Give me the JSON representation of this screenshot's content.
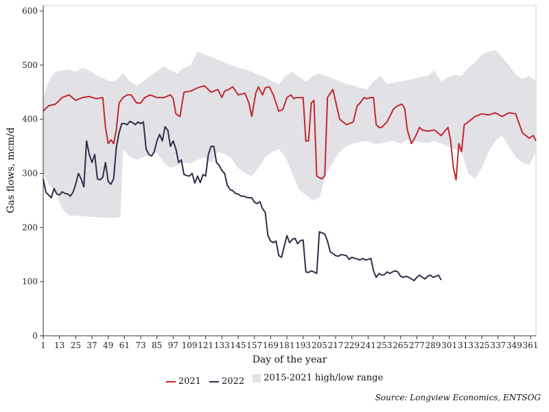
{
  "chart_data": {
    "type": "line",
    "xlabel": "Day of the year",
    "ylabel": "Gas flows, mcm/d",
    "xlim": [
      1,
      365
    ],
    "ylim": [
      0,
      600
    ],
    "x_ticks": [
      1,
      13,
      25,
      37,
      49,
      61,
      73,
      85,
      97,
      109,
      121,
      133,
      145,
      157,
      169,
      181,
      193,
      205,
      217,
      229,
      241,
      253,
      265,
      277,
      289,
      301,
      313,
      325,
      337,
      349,
      361
    ],
    "y_ticks": [
      0,
      100,
      200,
      300,
      400,
      500,
      600
    ],
    "grid": false,
    "legend_position": "bottom",
    "source": "Source: Longview Economics, ENTSOG",
    "range": {
      "name": "2015-2021 high/low range",
      "color": "#e2e1e6",
      "x": [
        1,
        5,
        10,
        15,
        20,
        25,
        30,
        35,
        40,
        45,
        50,
        55,
        58,
        60,
        65,
        70,
        75,
        80,
        85,
        90,
        95,
        100,
        105,
        110,
        115,
        120,
        125,
        130,
        135,
        140,
        145,
        150,
        155,
        160,
        165,
        170,
        175,
        180,
        185,
        190,
        195,
        200,
        205,
        210,
        215,
        220,
        225,
        230,
        235,
        240,
        245,
        250,
        255,
        260,
        265,
        270,
        275,
        280,
        285,
        290,
        295,
        300,
        305,
        310,
        315,
        320,
        325,
        330,
        335,
        340,
        345,
        350,
        355,
        360,
        365
      ],
      "high": [
        440,
        470,
        488,
        490,
        492,
        488,
        495,
        490,
        482,
        476,
        470,
        472,
        480,
        485,
        470,
        462,
        470,
        480,
        488,
        498,
        490,
        485,
        495,
        500,
        525,
        520,
        515,
        510,
        505,
        500,
        495,
        492,
        488,
        482,
        478,
        470,
        465,
        480,
        488,
        478,
        470,
        480,
        485,
        480,
        475,
        470,
        465,
        462,
        458,
        455,
        470,
        480,
        465,
        468,
        470,
        472,
        475,
        478,
        480,
        490,
        470,
        478,
        482,
        480,
        495,
        505,
        520,
        525,
        528,
        515,
        500,
        482,
        475,
        480,
        470
      ],
      "low": [
        300,
        280,
        265,
        235,
        222,
        222,
        221,
        220,
        219,
        218,
        218,
        218,
        220,
        345,
        330,
        325,
        330,
        335,
        338,
        320,
        310,
        315,
        320,
        318,
        325,
        330,
        320,
        340,
        335,
        328,
        310,
        300,
        295,
        310,
        330,
        340,
        345,
        330,
        300,
        270,
        260,
        250,
        255,
        300,
        320,
        340,
        350,
        355,
        358,
        360,
        355,
        355,
        358,
        360,
        355,
        362,
        360,
        358,
        356,
        360,
        355,
        350,
        345,
        340,
        300,
        290,
        310,
        340,
        360,
        370,
        350,
        330,
        320,
        315,
        340
      ]
    },
    "series": [
      {
        "name": "2021",
        "color": "#c0272d",
        "x": [
          1,
          5,
          10,
          15,
          20,
          25,
          30,
          35,
          40,
          45,
          47,
          49,
          51,
          53,
          55,
          57,
          60,
          63,
          66,
          70,
          73,
          76,
          80,
          85,
          90,
          95,
          97,
          99,
          102,
          105,
          110,
          115,
          120,
          125,
          130,
          133,
          135,
          138,
          141,
          145,
          150,
          153,
          155,
          158,
          160,
          163,
          165,
          168,
          171,
          175,
          178,
          181,
          184,
          186,
          188,
          190,
          193,
          195,
          197,
          199,
          201,
          203,
          205,
          207,
          209,
          211,
          215,
          220,
          225,
          230,
          233,
          235,
          238,
          240,
          243,
          245,
          247,
          249,
          251,
          255,
          260,
          263,
          266,
          268,
          270,
          273,
          276,
          279,
          281,
          285,
          290,
          295,
          300,
          302,
          304,
          306,
          308,
          310,
          312,
          315,
          320,
          325,
          330,
          335,
          340,
          345,
          350,
          355,
          360,
          363,
          365
        ],
        "y": [
          415,
          425,
          428,
          440,
          445,
          435,
          440,
          442,
          438,
          440,
          385,
          355,
          362,
          355,
          380,
          430,
          440,
          445,
          445,
          430,
          430,
          440,
          445,
          440,
          440,
          445,
          438,
          410,
          405,
          450,
          452,
          458,
          462,
          450,
          455,
          440,
          452,
          455,
          460,
          445,
          448,
          430,
          405,
          448,
          460,
          445,
          458,
          460,
          445,
          415,
          418,
          440,
          445,
          438,
          440,
          440,
          440,
          360,
          360,
          430,
          435,
          295,
          292,
          290,
          296,
          440,
          455,
          400,
          390,
          395,
          425,
          430,
          440,
          438,
          440,
          440,
          390,
          385,
          385,
          395,
          420,
          425,
          428,
          420,
          380,
          355,
          368,
          385,
          380,
          378,
          380,
          370,
          385,
          360,
          310,
          288,
          355,
          340,
          390,
          395,
          405,
          410,
          408,
          412,
          405,
          412,
          410,
          375,
          365,
          370,
          360
        ]
      },
      {
        "name": "2022",
        "color": "#2b2d47",
        "x": [
          1,
          3,
          5,
          7,
          9,
          11,
          13,
          15,
          17,
          19,
          21,
          23,
          25,
          27,
          29,
          31,
          33,
          35,
          37,
          39,
          41,
          43,
          45,
          47,
          49,
          51,
          53,
          55,
          57,
          59,
          61,
          63,
          65,
          67,
          69,
          71,
          73,
          75,
          77,
          79,
          81,
          83,
          85,
          87,
          89,
          91,
          93,
          95,
          97,
          99,
          101,
          103,
          105,
          107,
          109,
          111,
          113,
          115,
          117,
          119,
          121,
          123,
          125,
          127,
          129,
          131,
          133,
          135,
          137,
          139,
          141,
          143,
          145,
          147,
          149,
          151,
          153,
          155,
          157,
          159,
          161,
          163,
          165,
          167,
          169,
          171,
          173,
          175,
          177,
          179,
          181,
          183,
          185,
          187,
          189,
          191,
          193,
          195,
          197,
          199,
          201,
          203,
          205,
          207,
          209,
          211,
          213,
          215,
          217,
          219,
          221,
          223,
          225,
          227,
          229,
          231,
          233,
          235,
          237,
          239,
          241,
          243,
          245,
          247,
          249,
          251,
          253,
          255,
          257,
          259,
          261,
          263,
          265,
          267,
          269,
          271,
          273,
          275,
          277,
          279,
          281,
          283,
          285,
          287,
          289,
          291,
          293,
          295
        ],
        "y": [
          290,
          265,
          260,
          255,
          272,
          262,
          260,
          266,
          263,
          262,
          258,
          265,
          280,
          300,
          290,
          275,
          360,
          335,
          320,
          335,
          290,
          288,
          293,
          320,
          285,
          280,
          290,
          348,
          375,
          392,
          392,
          390,
          396,
          394,
          390,
          395,
          392,
          395,
          345,
          335,
          332,
          340,
          360,
          372,
          360,
          386,
          380,
          350,
          360,
          345,
          320,
          325,
          298,
          296,
          295,
          300,
          282,
          295,
          283,
          298,
          295,
          335,
          350,
          350,
          320,
          315,
          305,
          300,
          278,
          270,
          268,
          263,
          262,
          258,
          258,
          256,
          255,
          255,
          247,
          244,
          248,
          235,
          228,
          185,
          175,
          172,
          175,
          148,
          145,
          165,
          185,
          172,
          178,
          180,
          170,
          176,
          177,
          118,
          117,
          120,
          118,
          115,
          192,
          190,
          188,
          175,
          155,
          152,
          148,
          147,
          150,
          149,
          148,
          141,
          145,
          143,
          142,
          140,
          143,
          140,
          141,
          143,
          120,
          108,
          115,
          112,
          113,
          118,
          115,
          118,
          120,
          118,
          110,
          108,
          110,
          108,
          105,
          102,
          108,
          112,
          108,
          105,
          110,
          112,
          108,
          110,
          112,
          103
        ]
      }
    ]
  },
  "legend": {
    "label_2021": "2021",
    "label_2022": "2022",
    "label_range": "2015-2021 high/low range"
  }
}
